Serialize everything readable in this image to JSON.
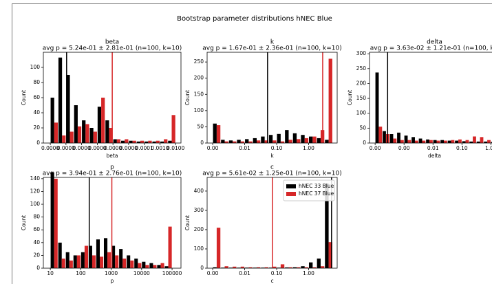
{
  "title": "Bootstrap parameter distributions hNEC Blue",
  "chart_data": [
    {
      "type": "histogram",
      "title": "beta",
      "subtitle": "avg p = 5.24e-01 ± 2.81e-01 (n=100, k=10)",
      "xlabel": "beta",
      "ylabel": "Count",
      "xscale": "log",
      "xlim": [
        3.6e-11,
        0.022
      ],
      "ylim": [
        0,
        120
      ],
      "xticks": [
        {
          "value": 1e-10,
          "label": "0.0000"
        },
        {
          "value": 1e-09,
          "label": "0.0000"
        },
        {
          "value": 1e-08,
          "label": "0.0000"
        },
        {
          "value": 1e-07,
          "label": "0.0000"
        },
        {
          "value": 1e-06,
          "label": "0.0000"
        },
        {
          "value": 1e-05,
          "label": "0.0000"
        },
        {
          "value": 0.0001,
          "label": "0.0001"
        },
        {
          "value": 0.001,
          "label": "0.0010"
        },
        {
          "value": 0.01,
          "label": "0.0100"
        }
      ],
      "yticks": [
        0,
        20,
        40,
        60,
        80,
        100
      ],
      "bins": [
        1e-10,
        3.16e-10,
        1e-09,
        3.16e-09,
        1e-08,
        3.16e-08,
        1e-07,
        3.16e-07,
        1e-06,
        3.16e-06,
        1e-05,
        3.16e-05,
        0.0001,
        0.000316,
        0.001,
        0.00316,
        0.01
      ],
      "series": [
        {
          "color": "#000000",
          "vline": 1.1e-09,
          "values": [
            60,
            113,
            90,
            50,
            30,
            20,
            48,
            30,
            5,
            3,
            3,
            2,
            2,
            2,
            2,
            3
          ]
        },
        {
          "color": "#d62728",
          "vline": 9e-07,
          "values": [
            27,
            10,
            15,
            22,
            25,
            15,
            60,
            20,
            5,
            5,
            3,
            3,
            3,
            3,
            5,
            37
          ]
        }
      ]
    },
    {
      "type": "histogram",
      "title": "k",
      "subtitle": "avg p = 1.67e-01 ± 2.36e-01 (n=100, k=10)",
      "xlabel": "k",
      "ylabel": "Count",
      "xscale": "log",
      "xlim": [
        0.00067,
        7.8
      ],
      "ylim": [
        0,
        280
      ],
      "xticks": [
        {
          "value": 0.001,
          "label": "0.00"
        },
        0.01,
        {
          "value": 0.1,
          "label": "0.10"
        },
        {
          "value": 1,
          "label": "1.00"
        }
      ],
      "yticks": [
        0,
        50,
        100,
        150,
        200,
        250
      ],
      "bins": [
        0.001,
        0.00178,
        0.00316,
        0.00562,
        0.01,
        0.0178,
        0.0316,
        0.0562,
        0.1,
        0.178,
        0.316,
        0.562,
        1,
        1.78,
        3.16,
        5.62
      ],
      "series": [
        {
          "color": "#000000",
          "vline": 0.052,
          "values": [
            60,
            10,
            8,
            10,
            12,
            15,
            20,
            25,
            28,
            40,
            30,
            25,
            20,
            15,
            10
          ]
        },
        {
          "color": "#d62728",
          "vline": 2.75,
          "values": [
            55,
            5,
            5,
            5,
            5,
            8,
            8,
            8,
            5,
            10,
            12,
            15,
            20,
            40,
            260
          ]
        }
      ]
    },
    {
      "type": "histogram",
      "title": "delta",
      "subtitle": "avg p = 3.63e-02 ± 1.21e-01 (n=100, k=",
      "xlabel": "delta",
      "ylabel": "Count",
      "xscale": "log",
      "xlim": [
        6.4e-05,
        2.0
      ],
      "ylim": [
        0,
        305
      ],
      "xticks": [
        {
          "value": 0.0001,
          "label": "0.00"
        },
        {
          "value": 0.001,
          "label": "0.00"
        },
        0.01,
        {
          "value": 0.1,
          "label": "0.10"
        },
        {
          "value": 1,
          "label": "1.00"
        }
      ],
      "yticks": [
        0,
        50,
        100,
        150,
        200,
        250,
        300
      ],
      "bins": [
        0.0001,
        0.000178,
        0.000316,
        0.000562,
        0.001,
        0.00178,
        0.00316,
        0.00562,
        0.01,
        0.0178,
        0.0316,
        0.0562,
        0.1,
        0.178,
        0.316,
        0.562,
        1,
        1.78
      ],
      "series": [
        {
          "color": "#000000",
          "vline": 0.00027,
          "values": [
            237,
            40,
            30,
            35,
            25,
            20,
            15,
            12,
            10,
            10,
            8,
            8,
            6,
            5,
            5,
            5,
            4
          ]
        },
        {
          "color": "#d62728",
          "values": [
            55,
            30,
            15,
            10,
            10,
            8,
            8,
            10,
            8,
            8,
            10,
            12,
            10,
            22,
            20,
            10,
            30
          ]
        }
      ]
    },
    {
      "type": "histogram",
      "title": "p",
      "subtitle": "avg p = 3.94e-01 ± 2.76e-01 (n=100, k=10)",
      "xlabel": "p",
      "ylabel": "Count",
      "xscale": "log",
      "xlim": [
        5.9,
        196000
      ],
      "ylim": [
        0,
        142
      ],
      "xticks": [
        10,
        100,
        1000,
        10000,
        100000
      ],
      "yticks": [
        0,
        20,
        40,
        60,
        80,
        100,
        120,
        140
      ],
      "bins": [
        10,
        17.8,
        31.6,
        56.2,
        100,
        178,
        316,
        562,
        1000,
        1780,
        3160,
        5620,
        10000,
        17800,
        31600,
        56200,
        100000
      ],
      "series": [
        {
          "color": "#000000",
          "vline": 190,
          "values": [
            150,
            40,
            25,
            20,
            25,
            35,
            45,
            47,
            35,
            30,
            20,
            15,
            10,
            8,
            5,
            3
          ]
        },
        {
          "color": "#d62728",
          "vline": 1050,
          "values": [
            140,
            15,
            12,
            20,
            35,
            20,
            18,
            25,
            20,
            15,
            12,
            8,
            5,
            5,
            8,
            65
          ]
        }
      ]
    },
    {
      "type": "histogram",
      "title": "c",
      "subtitle": "avg p = 5.61e-02 ± 1.25e-01 (n=100, k=10)",
      "xlabel": "c",
      "ylabel": "Count",
      "xscale": "log",
      "xlim": [
        0.00067,
        7.8
      ],
      "ylim": [
        0,
        471
      ],
      "legend": "upper right",
      "xticks": [
        {
          "value": 0.001,
          "label": "0.00"
        },
        0.01,
        {
          "value": 0.1,
          "label": "0.10"
        },
        {
          "value": 1,
          "label": "1.00"
        }
      ],
      "yticks": [
        0,
        100,
        200,
        300,
        400
      ],
      "bins": [
        0.001,
        0.00178,
        0.00316,
        0.00562,
        0.01,
        0.0178,
        0.0316,
        0.0562,
        0.1,
        0.178,
        0.316,
        0.562,
        1,
        1.78,
        3.16,
        5.62
      ],
      "series": [
        {
          "name": "hNEC 33 Blue",
          "color": "#000000",
          "vline": 5.2,
          "values": [
            5,
            3,
            3,
            3,
            3,
            3,
            3,
            3,
            3,
            4,
            5,
            10,
            30,
            50,
            440
          ]
        },
        {
          "name": "hNEC 37 Blue",
          "color": "#d62728",
          "vline": 0.074,
          "values": [
            210,
            10,
            8,
            8,
            5,
            5,
            5,
            8,
            20,
            5,
            5,
            5,
            5,
            10,
            135
          ]
        }
      ]
    }
  ]
}
